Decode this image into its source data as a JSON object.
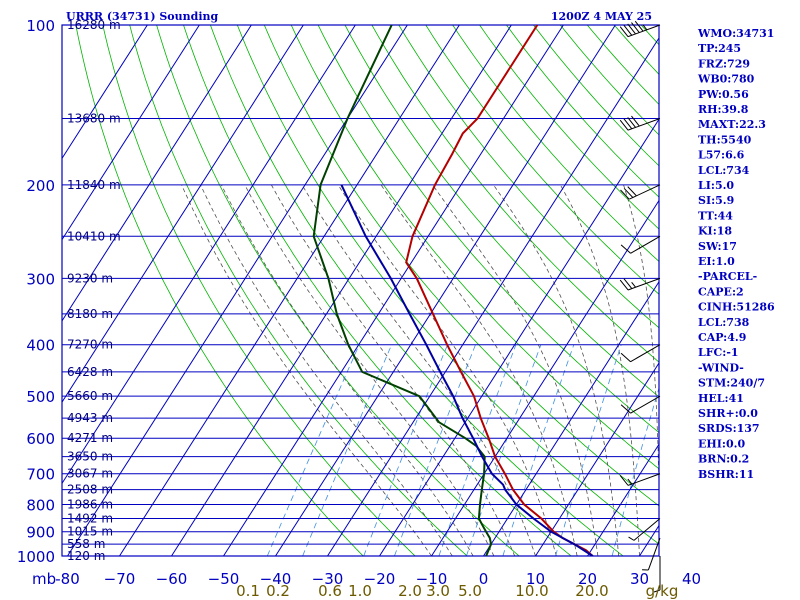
{
  "header": {
    "station_title": "URRR (34731) Sounding",
    "valid_time": "1200Z  4 MAY 25"
  },
  "indices": [
    "WMO:34731",
    "TP:245",
    "FRZ:729",
    "WB0:780",
    "PW:0.56",
    "RH:39.8",
    "MAXT:22.3",
    "TH:5540",
    "L57:6.6",
    "LCL:734",
    "LI:5.0",
    "SI:5.9",
    "TT:44",
    "KI:18",
    "SW:17",
    "EI:1.0",
    "-PARCEL-",
    "CAPE:2",
    "CINH:51286",
    "LCL:738",
    "CAP:4.9",
    "LFC:-1",
    "-WIND-",
    "STM:240/7",
    "HEL:41",
    "SHR+:0.0",
    "SRDS:137",
    "EHI:0.0",
    "BRN:0.2",
    "BSHR:11"
  ],
  "colors": {
    "frame": "#0000c0",
    "temperature": "#b40000",
    "dewpoint": "#004000",
    "parcel": "#0000a0",
    "dry_adiabat": "#00b400",
    "moist_adiabat": "#505050",
    "mixing_ratio": "#4090e0",
    "wind": "#000000"
  },
  "chart_data": {
    "type": "line",
    "subtype": "skew-T log-P sounding",
    "xlabel": "",
    "ylabel": "mb",
    "y_scale": "log",
    "ylim": [
      1000,
      100
    ],
    "xlim": [
      -80,
      0
    ],
    "pressure_ticks": [
      100,
      200,
      300,
      400,
      500,
      600,
      700,
      800,
      900,
      1000
    ],
    "pressure_tick_labels": [
      "100",
      "200",
      "300",
      "400",
      "500",
      "600",
      "700",
      "800",
      "900",
      "1000"
    ],
    "temperature_ticks": [
      -80,
      -70,
      -60,
      -50,
      -40,
      -30,
      -20,
      -10,
      0,
      10,
      20,
      30,
      40
    ],
    "temperature_tick_labels": [
      "-80",
      "−70",
      "−60",
      "−50",
      "−40",
      "−30",
      "−20",
      "−10",
      "0",
      "10",
      "20",
      "30",
      "40"
    ],
    "mixing_ratio_labels": [
      "0.1",
      "0.2",
      "0.6",
      "1.0",
      "2.0",
      "3.0",
      "5.0",
      "10.0",
      "20.0",
      "g/kg"
    ],
    "height_levels": [
      {
        "p": 100,
        "label": "16280 m"
      },
      {
        "p": 150,
        "label": "13680 m"
      },
      {
        "p": 200,
        "label": "11840 m"
      },
      {
        "p": 250,
        "label": "10410 m"
      },
      {
        "p": 300,
        "label": "9230 m"
      },
      {
        "p": 350,
        "label": "8180 m"
      },
      {
        "p": 400,
        "label": "7270 m"
      },
      {
        "p": 450,
        "label": "6428 m"
      },
      {
        "p": 500,
        "label": "5660 m"
      },
      {
        "p": 550,
        "label": "4943 m"
      },
      {
        "p": 600,
        "label": "4271 m"
      },
      {
        "p": 650,
        "label": "3650 m"
      },
      {
        "p": 700,
        "label": "3067 m"
      },
      {
        "p": 750,
        "label": "2508 m"
      },
      {
        "p": 800,
        "label": "1986 m"
      },
      {
        "p": 850,
        "label": "1492 m"
      },
      {
        "p": 900,
        "label": "1015 m"
      },
      {
        "p": 950,
        "label": "558 m"
      },
      {
        "p": 1000,
        "label": "120 m"
      }
    ],
    "series": [
      {
        "role": "temperature",
        "points": [
          [
            1000,
            21
          ],
          [
            975,
            19
          ],
          [
            950,
            16
          ],
          [
            925,
            13
          ],
          [
            900,
            10.5
          ],
          [
            850,
            6.5
          ],
          [
            800,
            1.5
          ],
          [
            750,
            -2.5
          ],
          [
            700,
            -6
          ],
          [
            650,
            -10
          ],
          [
            600,
            -13.5
          ],
          [
            550,
            -17.5
          ],
          [
            500,
            -21.5
          ],
          [
            450,
            -27
          ],
          [
            400,
            -33
          ],
          [
            350,
            -39.5
          ],
          [
            300,
            -47
          ],
          [
            280,
            -51
          ],
          [
            250,
            -53
          ],
          [
            200,
            -55
          ],
          [
            175,
            -55.5
          ],
          [
            160,
            -56
          ],
          [
            150,
            -55
          ],
          [
            130,
            -55
          ],
          [
            100,
            -55
          ]
        ]
      },
      {
        "role": "dewpoint",
        "points": [
          [
            1000,
            0.5
          ],
          [
            950,
            0
          ],
          [
            925,
            -1
          ],
          [
            900,
            -2.5
          ],
          [
            875,
            -4
          ],
          [
            850,
            -5.5
          ],
          [
            800,
            -7
          ],
          [
            750,
            -8.5
          ],
          [
            700,
            -10
          ],
          [
            650,
            -12
          ],
          [
            620,
            -15
          ],
          [
            600,
            -18
          ],
          [
            560,
            -25
          ],
          [
            500,
            -32
          ],
          [
            450,
            -46
          ],
          [
            400,
            -52
          ],
          [
            350,
            -58
          ],
          [
            300,
            -64
          ],
          [
            250,
            -72
          ],
          [
            200,
            -77
          ],
          [
            150,
            -80
          ],
          [
            100,
            -83
          ]
        ]
      },
      {
        "role": "parcel",
        "points": [
          [
            1000,
            21
          ],
          [
            950,
            16
          ],
          [
            900,
            10
          ],
          [
            850,
            5
          ],
          [
            800,
            0
          ],
          [
            750,
            -4
          ],
          [
            734,
            -5
          ],
          [
            700,
            -8.5
          ],
          [
            650,
            -12.5
          ],
          [
            600,
            -16.5
          ],
          [
            550,
            -21
          ],
          [
            500,
            -25.5
          ],
          [
            450,
            -31
          ],
          [
            400,
            -37
          ],
          [
            350,
            -44
          ],
          [
            300,
            -52
          ],
          [
            250,
            -62
          ],
          [
            200,
            -73
          ]
        ]
      }
    ],
    "wind_barbs": [
      {
        "p": 100,
        "dir": 250,
        "spd": 55
      },
      {
        "p": 150,
        "dir": 250,
        "spd": 40
      },
      {
        "p": 200,
        "dir": 245,
        "spd": 30
      },
      {
        "p": 250,
        "dir": 240,
        "spd": 10
      },
      {
        "p": 300,
        "dir": 250,
        "spd": 25
      },
      {
        "p": 400,
        "dir": 240,
        "spd": 10
      },
      {
        "p": 500,
        "dir": 240,
        "spd": 10
      },
      {
        "p": 700,
        "dir": 250,
        "spd": 15
      },
      {
        "p": 850,
        "dir": 230,
        "spd": 5
      },
      {
        "p": 925,
        "dir": 200,
        "spd": 5
      },
      {
        "p": 1000,
        "dir": 180,
        "spd": 5
      }
    ],
    "grid": true
  }
}
